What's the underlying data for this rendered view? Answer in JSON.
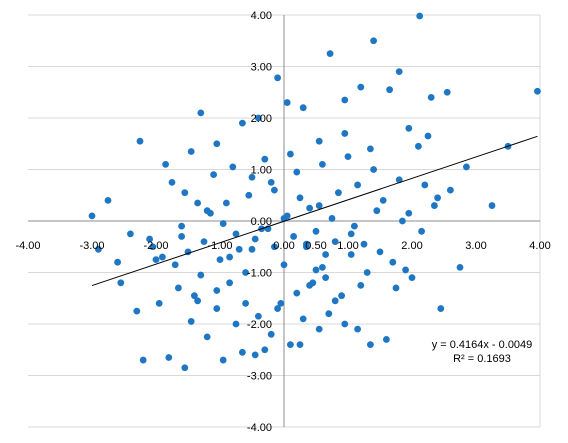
{
  "chart_data": {
    "type": "scatter",
    "title": "",
    "xlabel": "",
    "ylabel": "",
    "xlim": [
      -4,
      4
    ],
    "ylim": [
      -4,
      4
    ],
    "x_ticks": [
      "-4.00",
      "-3.00",
      "-2.00",
      "-1.00",
      "0.00",
      "0.50",
      "1.00",
      "2.00",
      "3.00",
      "4.00"
    ],
    "y_ticks": [
      "-4.00",
      "-3.00",
      "-2.00",
      "-1.00",
      "0.00",
      "1.00",
      "2.00",
      "3.00",
      "4.00"
    ],
    "grid": "horizontal",
    "marker_color": "#1f77c4",
    "trendline": {
      "slope": 0.4164,
      "intercept": -0.0049,
      "equation": "y = 0.4164x - 0.0049",
      "r_squared": "R² = 0.1693",
      "color": "#000000"
    },
    "series": [
      {
        "x": [
          2.12,
          1.4,
          3.96,
          -1.3,
          0.72,
          -0.1,
          0.05,
          1.2,
          1.8,
          0.3,
          -0.4,
          0.95,
          1.65,
          2.3,
          2.55,
          2.25,
          2.1,
          1.95,
          0.95,
          1.35,
          0.55,
          0.1,
          -0.3,
          -0.65,
          -1.05,
          -1.45,
          -1.85,
          -2.25,
          -2.75,
          -1.1,
          -0.8,
          -0.5,
          -0.2,
          0.2,
          0.6,
          1.0,
          1.4,
          1.8,
          2.2,
          2.6,
          -2.9,
          -3.0,
          -2.4,
          -2.6,
          -2.55,
          -2.1,
          -1.6,
          -1.2,
          -0.9,
          -0.55,
          -0.15,
          0.25,
          0.55,
          0.85,
          1.15,
          1.55,
          1.95,
          2.35,
          2.85,
          3.25,
          3.5,
          -1.75,
          -1.55,
          -1.35,
          -1.15,
          -0.95,
          -0.75,
          -0.35,
          0.05,
          0.4,
          0.75,
          1.1,
          1.45,
          1.85,
          2.15,
          2.4,
          -2.05,
          -1.9,
          -1.7,
          -1.5,
          -1.25,
          -1.0,
          -0.7,
          -0.45,
          -0.25,
          0.0,
          0.15,
          0.35,
          0.5,
          0.65,
          0.8,
          1.05,
          1.25,
          1.5,
          1.7,
          2.0,
          -0.6,
          -0.85,
          -1.4,
          -1.65,
          -1.95,
          -2.3,
          0.45,
          0.9,
          1.3,
          1.75,
          -0.05,
          -0.4,
          -0.75,
          -1.05,
          -1.35,
          0.3,
          0.7,
          1.15,
          -0.2,
          0.1,
          0.95,
          -1.2,
          -0.65,
          0.25,
          1.6,
          -1.8,
          -0.95,
          0.55,
          -0.45,
          0.8,
          2.45,
          -1.55,
          -0.3,
          0.4,
          1.35,
          -2.2,
          -0.1,
          1.9,
          -1.05,
          0.65,
          -0.6,
          2.75,
          -1.45,
          0.2,
          1.2,
          -0.85,
          0.0,
          0.5,
          -1.3,
          -0.5,
          1.05,
          -2.0,
          -0.15,
          0.6,
          -1.6,
          0.35
        ],
        "y": [
          3.98,
          3.5,
          2.52,
          2.1,
          3.25,
          2.78,
          2.3,
          2.6,
          2.9,
          2.2,
          2.0,
          2.35,
          2.55,
          2.4,
          2.5,
          1.65,
          1.45,
          1.8,
          1.7,
          1.4,
          1.55,
          1.3,
          1.2,
          1.9,
          1.5,
          1.35,
          1.1,
          1.55,
          0.4,
          0.9,
          1.05,
          0.85,
          0.75,
          0.95,
          1.1,
          1.25,
          1.0,
          0.8,
          0.7,
          0.6,
          -0.55,
          0.1,
          -0.25,
          -0.8,
          -1.2,
          -0.35,
          -0.1,
          0.2,
          0.35,
          0.5,
          0.6,
          0.45,
          0.3,
          0.55,
          0.7,
          0.4,
          0.15,
          0.3,
          1.05,
          0.3,
          1.45,
          0.75,
          0.55,
          0.35,
          0.15,
          -0.05,
          -0.25,
          -0.15,
          0.1,
          0.25,
          0.05,
          -0.1,
          0.2,
          0.0,
          -0.2,
          0.45,
          -0.5,
          -0.7,
          -0.85,
          -0.6,
          -0.4,
          -0.75,
          -0.55,
          -0.35,
          -0.15,
          0.05,
          -0.3,
          -0.5,
          -0.2,
          -0.65,
          -0.4,
          -0.25,
          -0.45,
          -0.6,
          -0.8,
          -1.1,
          -1.0,
          -1.2,
          -1.45,
          -1.3,
          -1.6,
          -1.75,
          -1.2,
          -1.45,
          -1.0,
          -1.3,
          -1.6,
          -1.85,
          -2.0,
          -1.7,
          -1.55,
          -1.9,
          -1.8,
          -2.1,
          -2.2,
          -2.4,
          -2.0,
          -2.25,
          -2.55,
          -2.4,
          -2.3,
          -2.65,
          -2.7,
          -2.1,
          -2.6,
          -1.55,
          -1.7,
          -2.85,
          -2.5,
          -1.25,
          -2.4,
          -2.7,
          -1.7,
          -0.95,
          -1.35,
          -1.1,
          -1.6,
          -0.9,
          -1.95,
          -1.4,
          -1.25,
          -0.7,
          -0.85,
          -0.95,
          -1.05,
          -0.55,
          -0.65,
          -0.75,
          -0.5,
          -0.9,
          -0.3,
          -0.45
        ]
      }
    ]
  }
}
